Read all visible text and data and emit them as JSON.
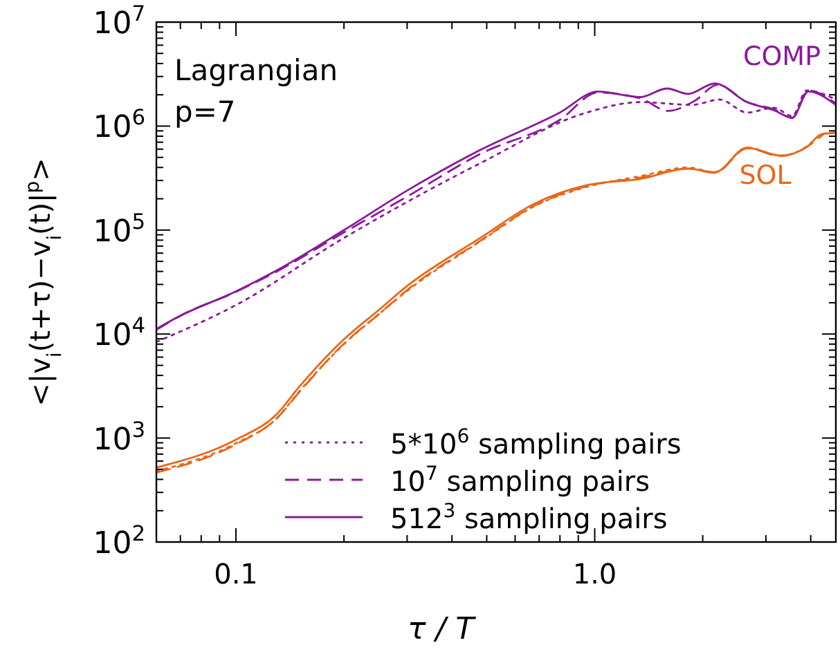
{
  "chart_data": {
    "type": "line",
    "xlabel": "τ / T",
    "ylabel": "<|v$_{i}$(t+τ)−v$_{i}$(t)|$^{p}$>",
    "log": "xy",
    "xlim": [
      0.06,
      4.7
    ],
    "ylim": [
      100,
      10000000
    ],
    "xticks": [
      {
        "value": 0.07,
        "label": null
      },
      {
        "value": 0.08,
        "label": null
      },
      {
        "value": 0.09,
        "label": null
      },
      0.1,
      {
        "value": 0.2,
        "label": null
      },
      {
        "value": 0.3,
        "label": null
      },
      {
        "value": 0.4,
        "label": null
      },
      {
        "value": 0.5,
        "label": null
      },
      {
        "value": 0.6,
        "label": null
      },
      {
        "value": 0.7,
        "label": null
      },
      {
        "value": 0.8,
        "label": null
      },
      {
        "value": 0.9,
        "label": null
      },
      {
        "value": 1,
        "label": "1.0"
      },
      {
        "value": 2,
        "label": null
      },
      {
        "value": 3,
        "label": null
      },
      {
        "value": 4,
        "label": null
      }
    ],
    "yticks": [
      {
        "value": 100,
        "label": "10$^{2}$"
      },
      {
        "value": 200,
        "label": null
      },
      {
        "value": 300,
        "label": null
      },
      {
        "value": 400,
        "label": null
      },
      {
        "value": 500,
        "label": null
      },
      {
        "value": 600,
        "label": null
      },
      {
        "value": 700,
        "label": null
      },
      {
        "value": 800,
        "label": null
      },
      {
        "value": 900,
        "label": null
      },
      {
        "value": 1000,
        "label": "10$^{3}$"
      },
      {
        "value": 2000,
        "label": null
      },
      {
        "value": 3000,
        "label": null
      },
      {
        "value": 4000,
        "label": null
      },
      {
        "value": 5000,
        "label": null
      },
      {
        "value": 6000,
        "label": null
      },
      {
        "value": 7000,
        "label": null
      },
      {
        "value": 8000,
        "label": null
      },
      {
        "value": 9000,
        "label": null
      },
      {
        "value": 10000,
        "label": "10$^{4}$"
      },
      {
        "value": 20000,
        "label": null
      },
      {
        "value": 30000,
        "label": null
      },
      {
        "value": 40000,
        "label": null
      },
      {
        "value": 50000,
        "label": null
      },
      {
        "value": 60000,
        "label": null
      },
      {
        "value": 70000,
        "label": null
      },
      {
        "value": 80000,
        "label": null
      },
      {
        "value": 90000,
        "label": null
      },
      {
        "value": 100000,
        "label": "10$^{5}$"
      },
      {
        "value": 200000,
        "label": null
      },
      {
        "value": 300000,
        "label": null
      },
      {
        "value": 400000,
        "label": null
      },
      {
        "value": 500000,
        "label": null
      },
      {
        "value": 600000,
        "label": null
      },
      {
        "value": 700000,
        "label": null
      },
      {
        "value": 800000,
        "label": null
      },
      {
        "value": 900000,
        "label": null
      },
      {
        "value": 1000000,
        "label": "10$^{6}$"
      },
      {
        "value": 2000000,
        "label": null
      },
      {
        "value": 3000000,
        "label": null
      },
      {
        "value": 4000000,
        "label": null
      },
      {
        "value": 5000000,
        "label": null
      },
      {
        "value": 6000000,
        "label": null
      },
      {
        "value": 7000000,
        "label": null
      },
      {
        "value": 8000000,
        "label": null
      },
      {
        "value": 9000000,
        "label": null
      },
      {
        "value": 10000000,
        "label": "10$^{7}$"
      }
    ],
    "legend": "bottom right",
    "grid": false,
    "series": [
      {
        "name": "5*10$^{6}$ sampling pairs",
        "color": "#8b1a9b",
        "line_style": "dotted",
        "x": [
          0.06,
          0.1,
          0.2,
          0.48,
          0.95,
          1.34,
          1.87,
          2.23,
          2.66,
          3.16,
          3.55,
          3.9,
          4.7
        ],
        "values": [
          8400,
          19000,
          84000,
          440000,
          1350000,
          1700000,
          1600000,
          1800000,
          1350000,
          1500000,
          1250000,
          2200000,
          1800000
        ]
      },
      {
        "name": "10$^{7}$ sampling pairs",
        "color": "#8b1a9b",
        "line_style": "dashed",
        "x": [
          0.06,
          0.07,
          0.1,
          0.13,
          0.2,
          0.3,
          0.48,
          0.8,
          1.02,
          1.34,
          1.6,
          1.9,
          2.2,
          2.66,
          3.16,
          3.55,
          3.94,
          4.7
        ],
        "values": [
          11000,
          15000,
          25500,
          40000,
          95000,
          210000,
          540000,
          1150000,
          2100000,
          1850000,
          1400000,
          1750000,
          2500000,
          1700000,
          1450000,
          1200000,
          2200000,
          1650000
        ]
      },
      {
        "name": "512$^{3}$ sampling pairs",
        "color": "#8b1a9b",
        "line_style": "solid",
        "x": [
          0.06,
          0.07,
          0.1,
          0.13,
          0.2,
          0.3,
          0.48,
          0.8,
          1.02,
          1.34,
          1.59,
          1.82,
          2.16,
          2.66,
          3.16,
          3.55,
          3.94,
          4.7
        ],
        "values": [
          11200,
          15000,
          25700,
          41000,
          100000,
          240000,
          590000,
          1350000,
          2150000,
          1900000,
          2300000,
          2040000,
          2570000,
          1700000,
          1420000,
          1200000,
          2150000,
          1600000
        ]
      },
      {
        "color": "#e8681a",
        "line_style": "dotted",
        "x": [
          0.06,
          0.1,
          0.13,
          0.15,
          0.2,
          0.25,
          0.3,
          0.48,
          0.68,
          0.95,
          1.34,
          1.82,
          2.16,
          2.66,
          3.3,
          3.9,
          4.2
        ],
        "values": [
          480,
          890,
          1550,
          2800,
          8000,
          15500,
          26000,
          78000,
          170000,
          260000,
          330000,
          400000,
          360000,
          620000,
          520000,
          640000,
          800000
        ]
      },
      {
        "color": "#e8681a",
        "line_style": "dashed",
        "x": [
          0.06,
          0.1,
          0.13,
          0.15,
          0.2,
          0.25,
          0.3,
          0.48,
          0.68,
          0.95,
          1.34,
          1.82,
          2.16,
          2.66,
          3.3,
          3.9,
          4.35
        ],
        "values": [
          465,
          870,
          1550,
          2750,
          8100,
          15500,
          26500,
          79000,
          172000,
          265000,
          320000,
          390000,
          355000,
          610000,
          515000,
          630000,
          840000
        ]
      },
      {
        "color": "#e8681a",
        "line_style": "solid",
        "x": [
          0.06,
          0.1,
          0.13,
          0.15,
          0.2,
          0.25,
          0.3,
          0.48,
          0.68,
          0.95,
          1.34,
          1.82,
          2.16,
          2.66,
          3.3,
          3.9,
          4.3,
          4.7
        ],
        "values": [
          520,
          965,
          1700,
          3100,
          8900,
          17000,
          29000,
          84000,
          180000,
          270000,
          310000,
          390000,
          360000,
          620000,
          520000,
          630000,
          840000,
          860000
        ]
      }
    ],
    "annotations": [
      "Lagrangian",
      "p=7",
      "COMP",
      "SOL"
    ]
  }
}
